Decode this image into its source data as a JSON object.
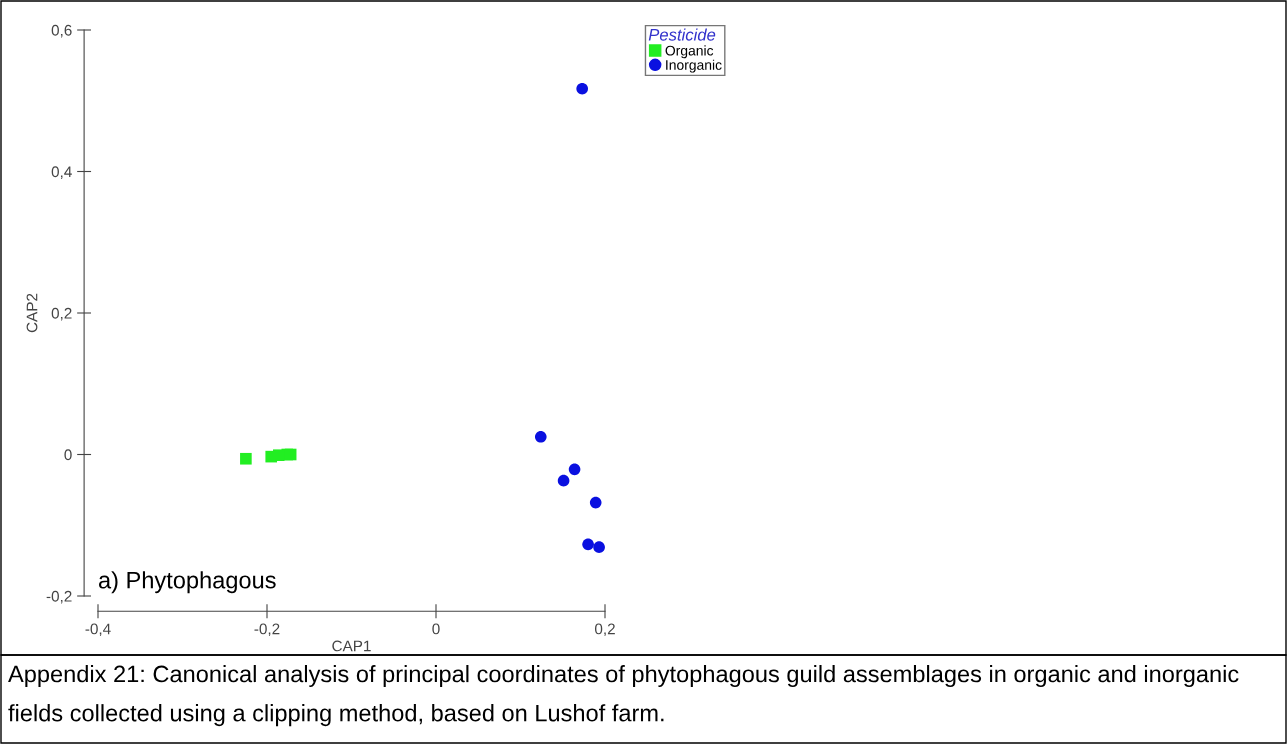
{
  "chart_data": {
    "type": "scatter",
    "xlabel": "CAP1",
    "ylabel": "CAP2",
    "legend_title": "Pesticide",
    "legend": "top right",
    "xlim": [
      -0.4,
      0.2
    ],
    "xticks": [
      {
        "value": -0.4,
        "label": "-0,4"
      },
      {
        "value": -0.2,
        "label": "-0,2"
      },
      0,
      {
        "value": 0.2,
        "label": "0,2"
      }
    ],
    "ylim": [
      -0.2,
      0.6
    ],
    "yticks": [
      {
        "value": -0.2,
        "label": "-0,2"
      },
      0,
      {
        "value": 0.2,
        "label": "0,2"
      },
      {
        "value": 0.4,
        "label": "0,4"
      },
      {
        "value": 0.6,
        "label": "0,6"
      }
    ],
    "grid": false,
    "series": [
      {
        "name": "Organic",
        "color": "#22ee22",
        "marker": "square",
        "x": [
          -0.225,
          -0.195,
          -0.186,
          -0.176,
          -0.172
        ],
        "values": [
          -0.006,
          -0.003,
          -0.001,
          0.0,
          0.0
        ]
      },
      {
        "name": "Inorganic",
        "color": "#0a10e0",
        "marker": "circle",
        "x": [
          0.173,
          0.124,
          0.164,
          0.151,
          0.189,
          0.18,
          0.193
        ],
        "values": [
          0.517,
          0.025,
          -0.021,
          -0.037,
          -0.068,
          -0.127,
          -0.131
        ]
      }
    ],
    "annotations": [
      "a) Phytophagous",
      "Appendix 21: Canonical analysis of principal coordinates of phytophagous guild assemblages in organic and inorganic fields collected using a clipping method, based on Lushof farm."
    ]
  }
}
